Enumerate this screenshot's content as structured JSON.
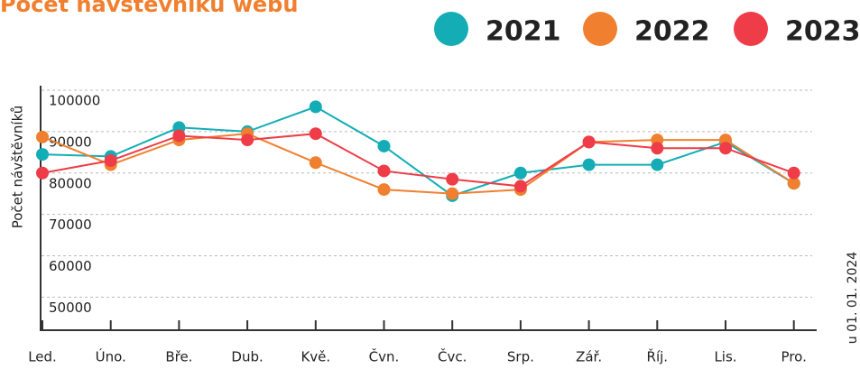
{
  "chart_data": {
    "type": "line",
    "title": "Počet návštěvníků webu",
    "y_label": "Počet návštěvníků",
    "note": "u 01. 01. 2024",
    "categories": [
      "Led.",
      "Úno.",
      "Bře.",
      "Dub.",
      "Kvě.",
      "Čvn.",
      "Čvc.",
      "Srp.",
      "Zář.",
      "Říj.",
      "Lis.",
      "Pro."
    ],
    "series": [
      {
        "name": "2021",
        "color": "#14adb6",
        "values": [
          84500,
          84000,
          91000,
          90000,
          96000,
          86500,
          74500,
          80000,
          82000,
          82000,
          87500,
          77500
        ]
      },
      {
        "name": "2022",
        "color": "#f08030",
        "values": [
          88700,
          82000,
          88000,
          89500,
          82500,
          76000,
          75000,
          76000,
          87500,
          88000,
          88000,
          77500
        ]
      },
      {
        "name": "2023",
        "color": "#ee3d48",
        "values": [
          80000,
          83000,
          89000,
          88000,
          89500,
          80500,
          78500,
          76800,
          87500,
          86000,
          86000,
          80000
        ]
      }
    ],
    "ylim": [
      42000,
      101000
    ],
    "yticks": [
      50000,
      60000,
      70000,
      80000,
      90000,
      100000
    ],
    "grid": true
  }
}
